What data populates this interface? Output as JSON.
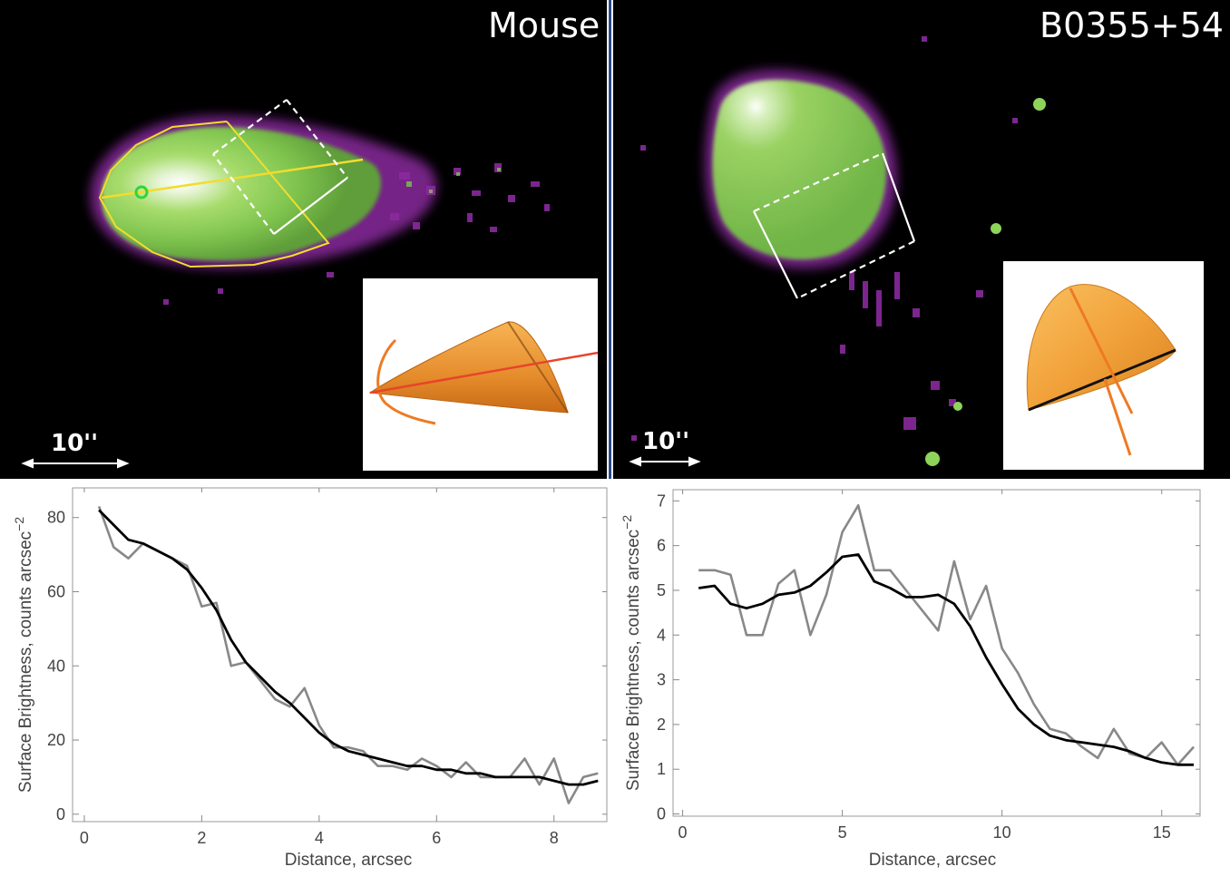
{
  "panels": {
    "left": {
      "title": "Mouse",
      "scale_label": "10''"
    },
    "right": {
      "title": "B0355+54",
      "scale_label": "10''"
    }
  },
  "colors": {
    "background": "#000000",
    "glow_core": "#ffffff",
    "glow_mid": "#8ed45a",
    "glow_edge": "#8a2a9e",
    "contour": "#f2dc2e",
    "box": "#ffffff",
    "cone": "#f2a23a",
    "axis_line": "#e8442a",
    "raw_series": "#888888",
    "smooth_series": "#000000"
  },
  "chart_data": [
    {
      "type": "line",
      "title": "",
      "xlabel": "Distance, arcsec",
      "ylabel": "Surface Brightness, counts arcsec",
      "ylabel_sup": "−2",
      "xlim": [
        -0.2,
        8.9
      ],
      "ylim": [
        -2,
        88
      ],
      "xticks": [
        0,
        2,
        4,
        6,
        8
      ],
      "yticks": [
        0,
        20,
        40,
        60,
        80
      ],
      "series": [
        {
          "role": "raw",
          "x": [
            0.25,
            0.5,
            0.75,
            1.0,
            1.25,
            1.5,
            1.75,
            2.0,
            2.25,
            2.5,
            2.75,
            3.0,
            3.25,
            3.5,
            3.75,
            4.0,
            4.25,
            4.5,
            4.75,
            5.0,
            5.25,
            5.5,
            5.75,
            6.0,
            6.25,
            6.5,
            6.75,
            7.0,
            7.25,
            7.5,
            7.75,
            8.0,
            8.25,
            8.5,
            8.75
          ],
          "y": [
            83,
            72,
            69,
            73,
            71,
            69,
            67,
            56,
            57,
            40,
            41,
            36,
            31,
            29,
            34,
            24,
            18,
            18,
            17,
            13,
            13,
            12,
            15,
            13,
            10,
            14,
            10,
            10,
            10,
            15,
            8,
            15,
            3,
            10,
            11
          ]
        },
        {
          "role": "smoothed",
          "x": [
            0.25,
            0.5,
            0.75,
            1.0,
            1.25,
            1.5,
            1.75,
            2.0,
            2.25,
            2.5,
            2.75,
            3.0,
            3.25,
            3.5,
            3.75,
            4.0,
            4.25,
            4.5,
            4.75,
            5.0,
            5.25,
            5.5,
            5.75,
            6.0,
            6.25,
            6.5,
            6.75,
            7.0,
            7.25,
            7.5,
            7.75,
            8.0,
            8.25,
            8.5,
            8.75
          ],
          "y": [
            82,
            78,
            74,
            73,
            71,
            69,
            66,
            61,
            55,
            47,
            41,
            37,
            33,
            30,
            26,
            22,
            19,
            17,
            16,
            15,
            14,
            13,
            13,
            12,
            12,
            11,
            11,
            10,
            10,
            10,
            10,
            9,
            8,
            8,
            9
          ]
        }
      ]
    },
    {
      "type": "line",
      "title": "",
      "xlabel": "Distance, arcsec",
      "ylabel": "Surface Brightness, counts arcsec",
      "ylabel_sup": "−2",
      "xlim": [
        -0.3,
        16.2
      ],
      "ylim": [
        -0.05,
        7.25
      ],
      "xticks": [
        0,
        5,
        10,
        15
      ],
      "yticks": [
        0,
        1,
        2,
        3,
        4,
        5,
        6,
        7
      ],
      "series": [
        {
          "role": "raw",
          "x": [
            0.5,
            1.0,
            1.5,
            2.0,
            2.5,
            3.0,
            3.5,
            4.0,
            4.5,
            5.0,
            5.5,
            6.0,
            6.5,
            7.0,
            7.5,
            8.0,
            8.5,
            9.0,
            9.5,
            10.0,
            10.5,
            11.0,
            11.5,
            12.0,
            12.5,
            13.0,
            13.5,
            14.0,
            14.5,
            15.0,
            15.5,
            16.0
          ],
          "y": [
            5.45,
            5.45,
            5.35,
            4.0,
            4.0,
            5.15,
            5.45,
            4.0,
            4.9,
            6.3,
            6.9,
            5.45,
            5.45,
            5.0,
            4.55,
            4.1,
            5.65,
            4.35,
            5.1,
            3.7,
            3.15,
            2.45,
            1.9,
            1.8,
            1.5,
            1.25,
            1.9,
            1.35,
            1.25,
            1.6,
            1.1,
            1.5
          ]
        },
        {
          "role": "smoothed",
          "x": [
            0.5,
            1.0,
            1.5,
            2.0,
            2.5,
            3.0,
            3.5,
            4.0,
            4.5,
            5.0,
            5.5,
            6.0,
            6.5,
            7.0,
            7.5,
            8.0,
            8.5,
            9.0,
            9.5,
            10.0,
            10.5,
            11.0,
            11.5,
            12.0,
            12.5,
            13.0,
            13.5,
            14.0,
            14.5,
            15.0,
            15.5,
            16.0
          ],
          "y": [
            5.05,
            5.1,
            4.7,
            4.6,
            4.7,
            4.9,
            4.95,
            5.1,
            5.4,
            5.75,
            5.8,
            5.2,
            5.05,
            4.85,
            4.85,
            4.9,
            4.7,
            4.2,
            3.5,
            2.9,
            2.35,
            2.0,
            1.75,
            1.65,
            1.6,
            1.55,
            1.5,
            1.4,
            1.25,
            1.15,
            1.1,
            1.1
          ]
        }
      ]
    }
  ]
}
